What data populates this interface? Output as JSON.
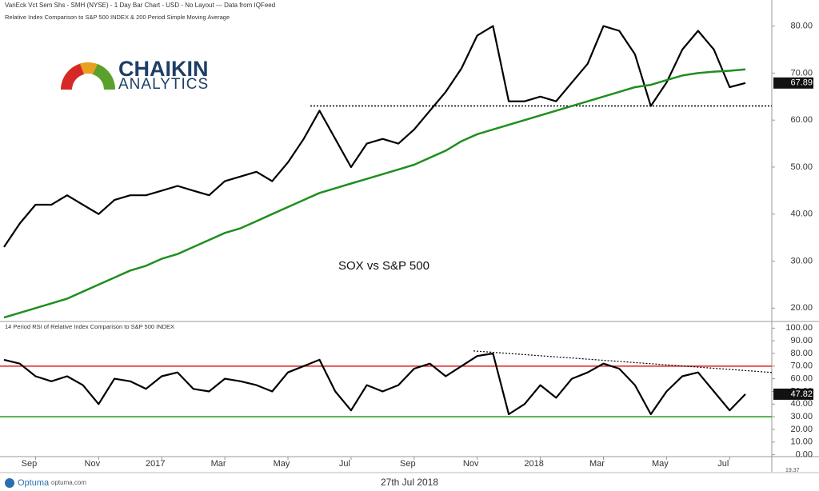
{
  "header": "VanEck Vct Sem Shs - SMH (NYSE) - 1 Day Bar Chart - USD - No Layout --- Data from IQFeed",
  "logo": {
    "name": "CHAIKIN",
    "tagline": "ANALYTICS"
  },
  "footer": {
    "brand": "Optuma",
    "site": "optuma.com",
    "date": "27th Jul 2018",
    "corner": "19.37"
  },
  "chart_data": [
    {
      "type": "line",
      "title": "Relative Index Comparison to S&P 500 INDEX & 200 Period Simple Moving Average",
      "annotation": "SOX vs S&P 500",
      "ylim": [
        17.5,
        83
      ],
      "yticks": [
        {
          "value": 20,
          "label": "20.00"
        },
        {
          "value": 30,
          "label": "30.00"
        },
        {
          "value": 40,
          "label": "40.00"
        },
        {
          "value": 50,
          "label": "50.00"
        },
        {
          "value": 60,
          "label": "60.00"
        },
        {
          "value": 70,
          "label": "70.00"
        },
        {
          "value": 80,
          "label": "80.00"
        }
      ],
      "support_line": {
        "value": 63
      },
      "last_value_label": "67.89",
      "series": [
        {
          "name": "Relative Index",
          "color": "#000000",
          "values": [
            33,
            38,
            42,
            42,
            44,
            42,
            40,
            43,
            44,
            44,
            45,
            46,
            45,
            44,
            47,
            48,
            49,
            47,
            51,
            56,
            62,
            56,
            50,
            55,
            56,
            55,
            58,
            62,
            66,
            71,
            78,
            80,
            64,
            64,
            65,
            64,
            68,
            72,
            80,
            79,
            74,
            63,
            68,
            75,
            79,
            75,
            67,
            67.89
          ]
        },
        {
          "name": "200 Period SMA",
          "color": "#1f8f1f",
          "values": [
            18,
            19,
            20,
            21,
            22,
            23.5,
            25,
            26.5,
            28,
            29,
            30.5,
            31.5,
            33,
            34.5,
            36,
            37,
            38.5,
            40,
            41.5,
            43,
            44.5,
            45.5,
            46.5,
            47.5,
            48.5,
            49.5,
            50.5,
            52,
            53.5,
            55.5,
            57,
            58,
            59,
            60,
            61,
            62,
            63,
            64,
            65,
            66,
            67,
            67.5,
            68.5,
            69.5,
            70,
            70.3,
            70.5,
            70.8
          ]
        }
      ]
    },
    {
      "type": "line",
      "title": "14 Period RSI of Relative Index Comparison to S&P 500 INDEX",
      "ylim": [
        -1.5,
        104
      ],
      "yticks": [
        {
          "value": 0,
          "label": "0.00"
        },
        {
          "value": 10,
          "label": "10.00"
        },
        {
          "value": 20,
          "label": "20.00"
        },
        {
          "value": 30,
          "label": "30.00"
        },
        {
          "value": 40,
          "label": "40.00"
        },
        {
          "value": 50,
          "label": "50.00"
        },
        {
          "value": 60,
          "label": "60.00"
        },
        {
          "value": 70,
          "label": "70.00"
        },
        {
          "value": 80,
          "label": "80.00"
        },
        {
          "value": 90,
          "label": "90.00"
        },
        {
          "value": 100,
          "label": "100.00"
        }
      ],
      "levels": [
        {
          "value": 70,
          "color": "#e02020"
        },
        {
          "value": 30,
          "color": "#1a9a1a"
        }
      ],
      "trend_line": {
        "start": 82,
        "end": 65
      },
      "last_value_label": "47.82",
      "categories": [
        null,
        null,
        "Sep",
        null,
        null,
        null,
        "Nov",
        null,
        null,
        null,
        "2017",
        null,
        null,
        null,
        "Mar",
        null,
        null,
        null,
        "May",
        null,
        null,
        null,
        "Jul",
        null,
        null,
        null,
        "Sep",
        null,
        null,
        null,
        "Nov",
        null,
        null,
        null,
        "2018",
        null,
        null,
        null,
        "Mar",
        null,
        null,
        null,
        "May",
        null,
        null,
        null,
        "Jul",
        null
      ],
      "series": [
        {
          "name": "RSI",
          "color": "#000000",
          "values": [
            75,
            72,
            62,
            58,
            62,
            55,
            40,
            60,
            58,
            52,
            62,
            65,
            52,
            50,
            60,
            58,
            55,
            50,
            65,
            70,
            75,
            50,
            35,
            55,
            50,
            55,
            68,
            72,
            62,
            70,
            78,
            80,
            32,
            40,
            55,
            45,
            60,
            65,
            72,
            68,
            55,
            32,
            50,
            62,
            65,
            50,
            35,
            47.82
          ]
        }
      ]
    }
  ]
}
